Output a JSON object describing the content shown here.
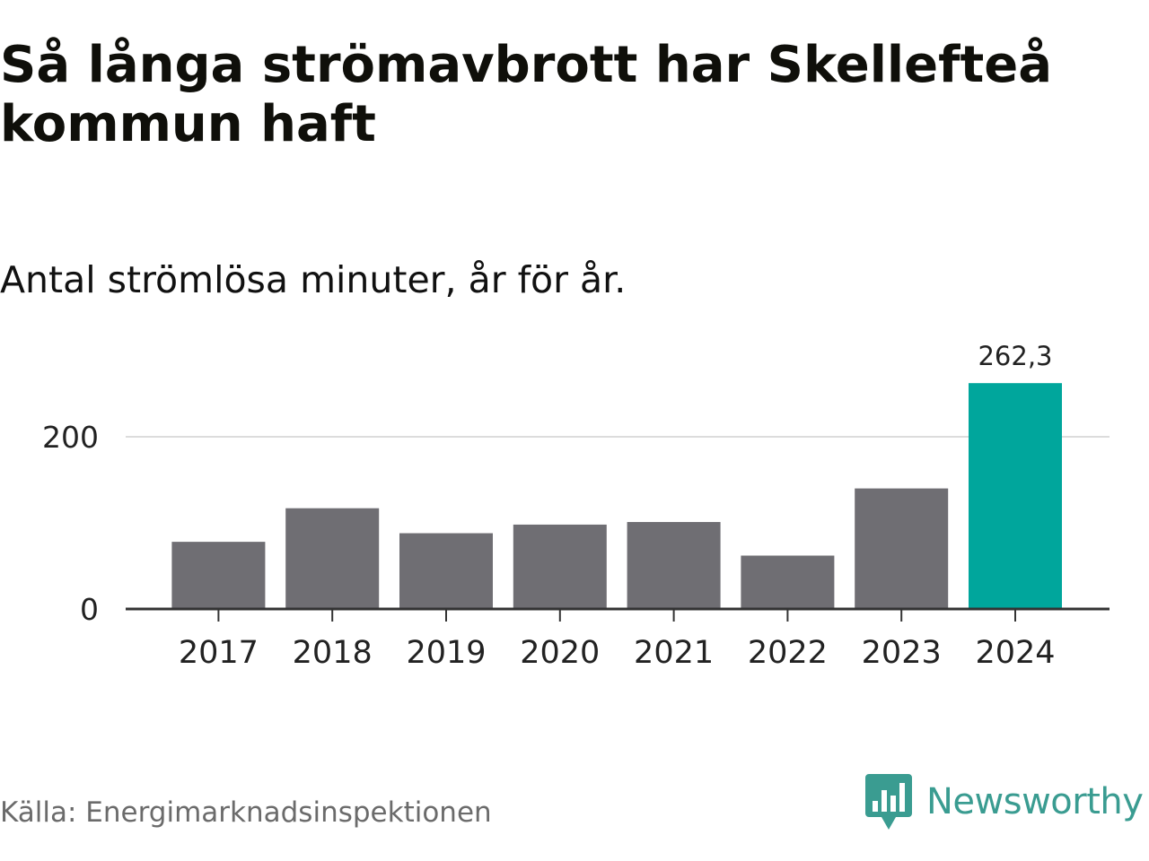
{
  "title": "Så långa strömavbrott har Skellefteå kommun haft",
  "subtitle": "Antal strömlösa minuter, år för år.",
  "source": "Källa: Energimarknadsinspektionen",
  "brand": {
    "name": "Newsworthy",
    "icon": "newsworthy-logo-icon",
    "color": "#3a9c91"
  },
  "colors": {
    "bar_default": "#6f6e73",
    "bar_highlight": "#00a69c",
    "gridline": "#dcdcdc",
    "axis": "#333333",
    "text": "#222222"
  },
  "chart_data": {
    "type": "bar",
    "title": "Så långa strömavbrott har Skellefteå kommun haft",
    "subtitle": "Antal strömlösa minuter, år för år.",
    "xlabel": "",
    "ylabel": "",
    "categories": [
      "2017",
      "2018",
      "2019",
      "2020",
      "2021",
      "2022",
      "2023",
      "2024"
    ],
    "values": [
      78,
      117,
      88,
      98,
      101,
      62,
      140,
      262.3
    ],
    "highlight_index": 7,
    "data_labels": [
      {
        "index": 7,
        "text": "262,3"
      }
    ],
    "ylim": [
      0,
      275
    ],
    "yticks": [
      0,
      200
    ],
    "ytick_labels": [
      "0",
      "200"
    ],
    "grid": true,
    "legend": "none"
  }
}
